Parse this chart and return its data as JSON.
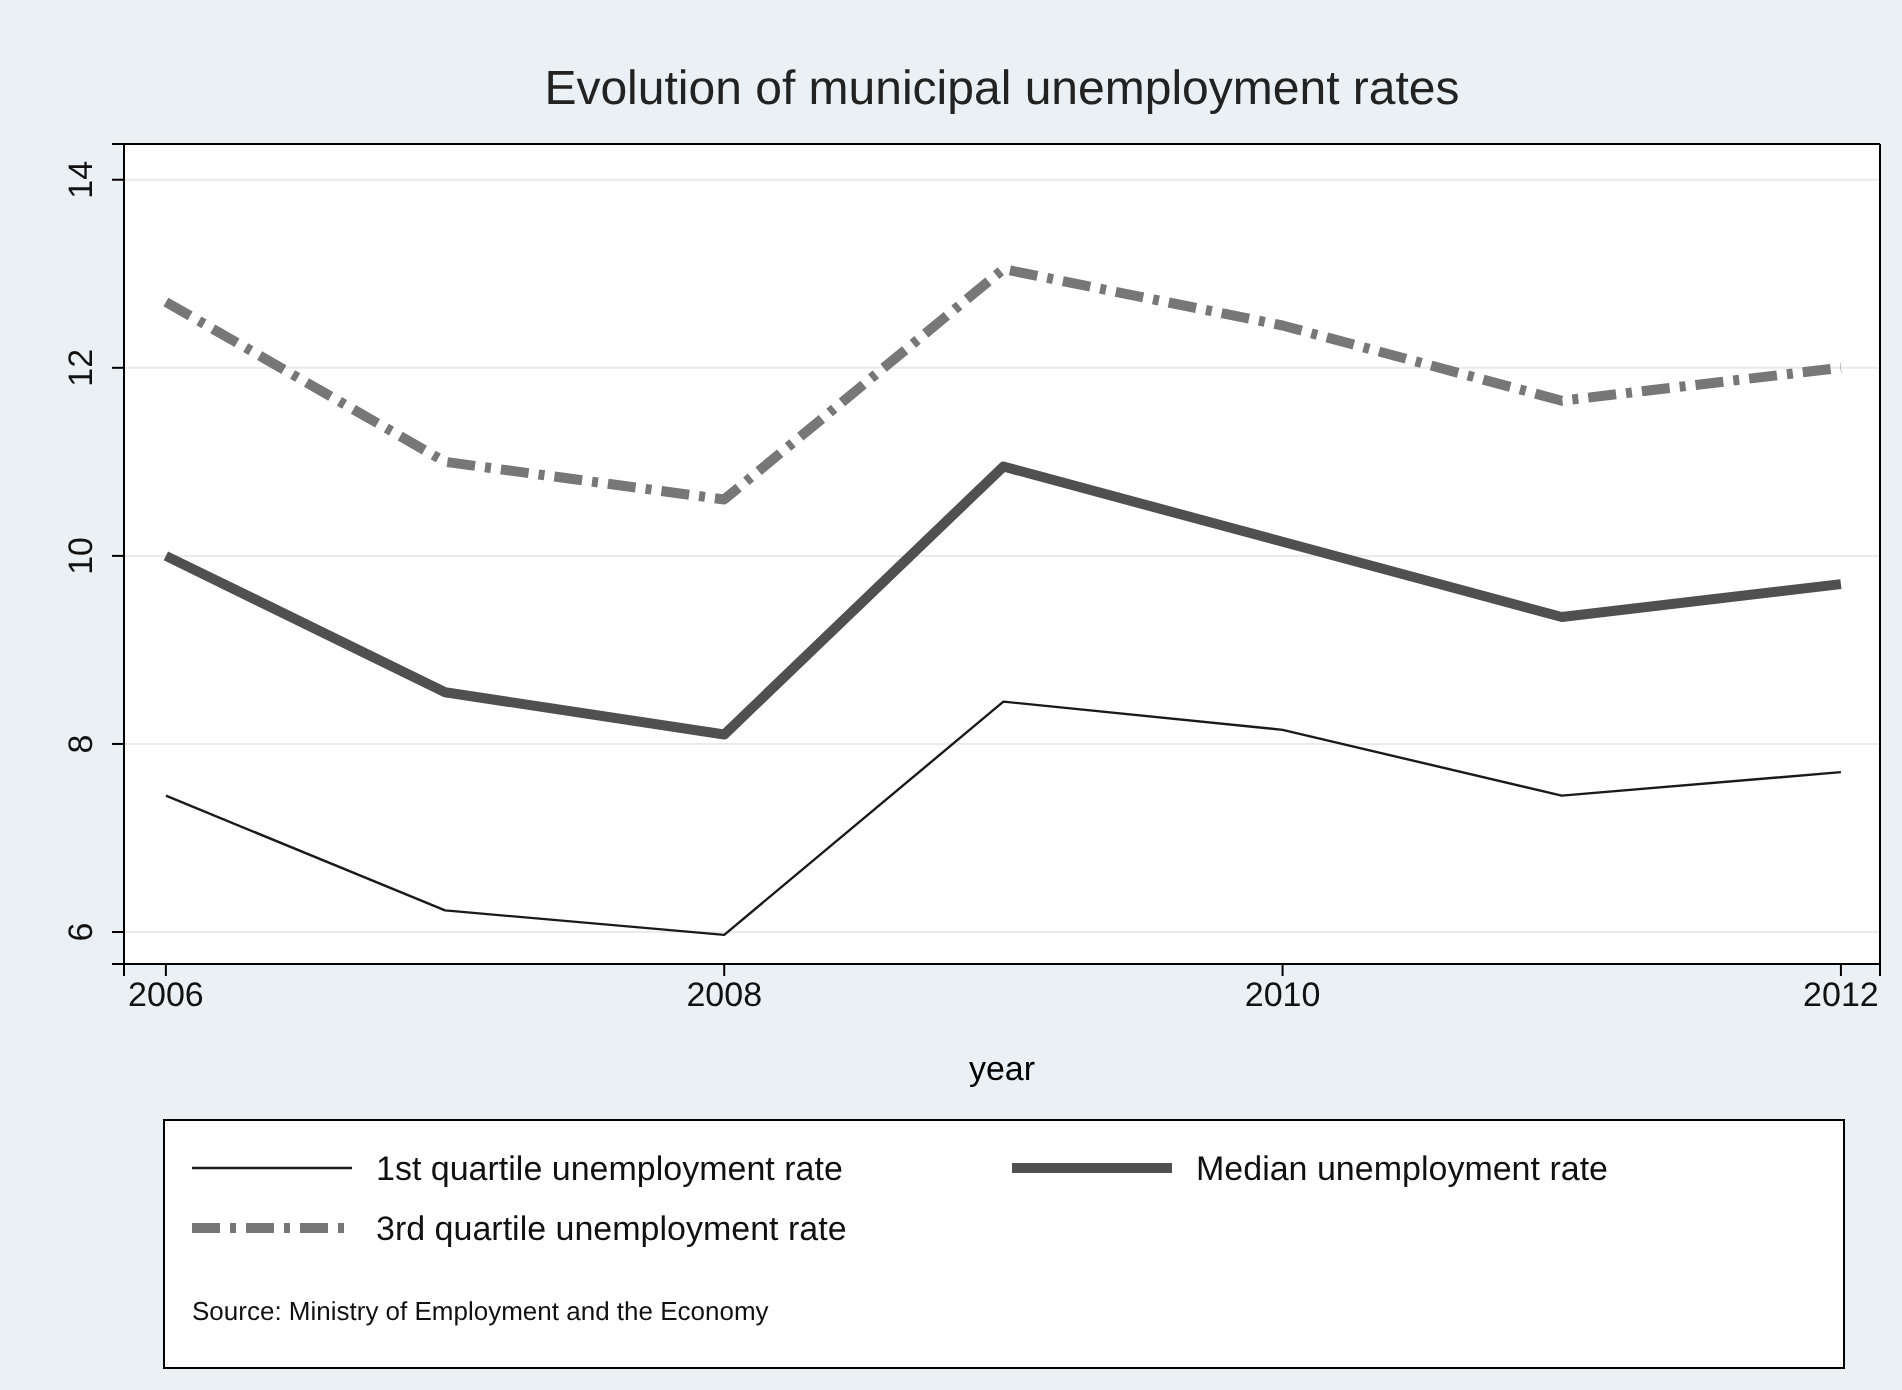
{
  "chart_data": {
    "type": "line",
    "title": "Evolution of municipal unemployment rates",
    "xlabel": "year",
    "x": [
      2006,
      2007,
      2008,
      2009,
      2010,
      2011,
      2012
    ],
    "series": [
      {
        "name": "1st quartile unemployment rate",
        "color": "#1a1a1a",
        "line_style": "solid",
        "values": [
          7.45,
          6.23,
          5.97,
          8.45,
          8.15,
          7.45,
          7.7
        ]
      },
      {
        "name": "Median unemployment rate",
        "color": "#505050",
        "line_style": "solid",
        "values": [
          10.0,
          8.55,
          8.1,
          10.95,
          10.15,
          9.35,
          9.7
        ]
      },
      {
        "name": "3rd quartile unemployment rate",
        "color": "#777777",
        "line_style": "dashed",
        "values": [
          12.7,
          11.0,
          10.6,
          13.05,
          12.45,
          11.65,
          12.0
        ]
      }
    ],
    "xlim": [
      2005.85,
      2012.14
    ],
    "xticks": [
      2006,
      2008,
      2010,
      2012
    ],
    "ylim": [
      5.66,
      14.38
    ],
    "yticks": [
      6,
      8,
      10,
      12,
      14
    ],
    "grid": "y",
    "legend": "bottom",
    "marker": "none",
    "annotations": [
      "Source: Ministry of Employment and the Economy"
    ]
  }
}
